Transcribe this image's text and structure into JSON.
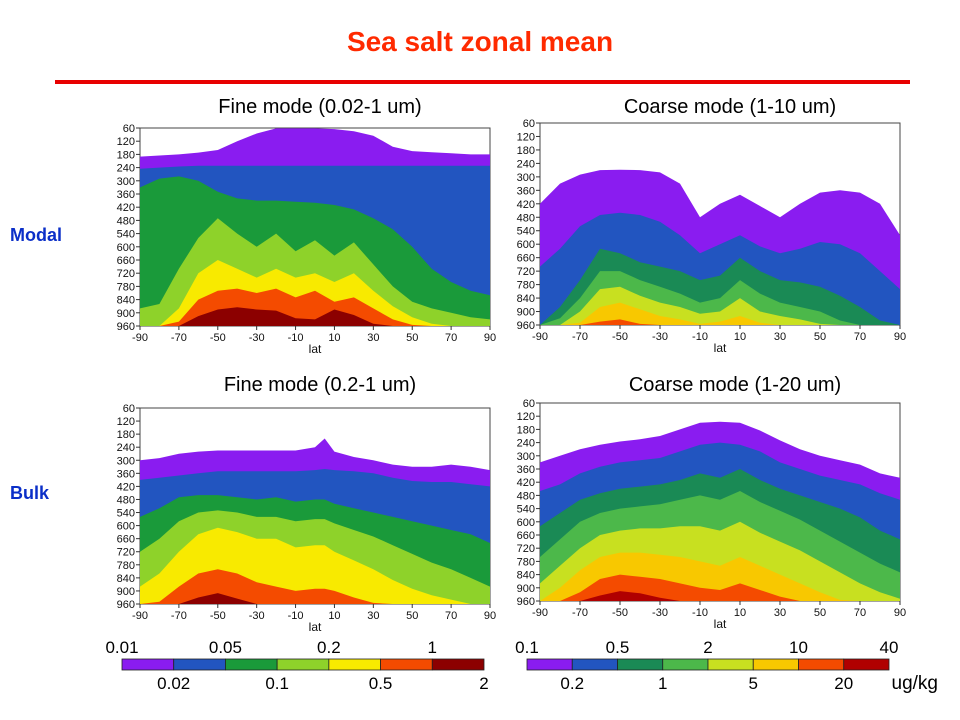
{
  "title": "Sea salt zonal mean",
  "row_labels": [
    "Modal",
    "Bulk"
  ],
  "units": "ug/kg",
  "colors": {
    "title": "#ff2a00",
    "row_label": "#0b2fc8",
    "fine_scale": [
      "#8a1cf0",
      "#2255c0",
      "#1a9a3a",
      "#8ed22a",
      "#f8ea00",
      "#f44b00",
      "#8c0000"
    ],
    "coarse_scale": [
      "#8a1cf0",
      "#2255c0",
      "#1a8a55",
      "#4cb84a",
      "#c8e020",
      "#f8c800",
      "#f44b00",
      "#b00000"
    ]
  },
  "chart_data": [
    {
      "type": "area",
      "title": "Fine mode (0.02-1 um)",
      "row": "Modal",
      "xlabel": "lat",
      "x_ticks": [
        "-90",
        "-70",
        "-50",
        "-30",
        "-10",
        "10",
        "30",
        "50",
        "70",
        "90"
      ],
      "y_ticks": [
        "60",
        "120",
        "180",
        "240",
        "300",
        "360",
        "420",
        "480",
        "540",
        "600",
        "660",
        "720",
        "780",
        "840",
        "900",
        "960"
      ],
      "xlim": [
        -90,
        90
      ],
      "ylim": [
        960,
        60
      ],
      "scale": "fine",
      "x": [
        -90,
        -80,
        -70,
        -60,
        -50,
        -40,
        -30,
        -20,
        -10,
        0,
        10,
        20,
        30,
        40,
        50,
        60,
        70,
        80,
        90
      ],
      "series": [
        {
          "values": [
            190,
            185,
            180,
            172,
            160,
            120,
            85,
            62,
            62,
            62,
            65,
            75,
            95,
            145,
            165,
            170,
            175,
            180,
            180
          ]
        },
        {
          "values": [
            245,
            240,
            235,
            232,
            232,
            232,
            232,
            232,
            232,
            232,
            232,
            232,
            232,
            232,
            232,
            232,
            232,
            232,
            232
          ]
        },
        {
          "values": [
            330,
            290,
            280,
            300,
            350,
            380,
            390,
            390,
            395,
            400,
            410,
            430,
            470,
            520,
            600,
            700,
            760,
            800,
            820
          ]
        },
        {
          "values": [
            880,
            860,
            700,
            560,
            470,
            540,
            600,
            540,
            620,
            570,
            640,
            580,
            680,
            780,
            850,
            880,
            900,
            920,
            930
          ]
        },
        {
          "values": [
            965,
            965,
            880,
            720,
            660,
            700,
            740,
            700,
            740,
            720,
            760,
            720,
            800,
            870,
            920,
            950,
            960,
            965,
            965
          ]
        },
        {
          "values": [
            965,
            965,
            940,
            840,
            800,
            790,
            810,
            790,
            830,
            800,
            850,
            830,
            880,
            930,
            955,
            965,
            965,
            965,
            965
          ]
        },
        {
          "values": [
            965,
            965,
            965,
            915,
            885,
            875,
            885,
            890,
            925,
            930,
            885,
            910,
            950,
            965,
            965,
            965,
            965,
            965,
            965
          ]
        }
      ]
    },
    {
      "type": "area",
      "title": "Coarse mode (1-10 um)",
      "row": "Modal",
      "xlabel": "lat",
      "x_ticks": [
        "-90",
        "-70",
        "-50",
        "-30",
        "-10",
        "10",
        "30",
        "50",
        "70",
        "90"
      ],
      "y_ticks": [
        "60",
        "120",
        "180",
        "240",
        "300",
        "360",
        "420",
        "480",
        "540",
        "600",
        "660",
        "720",
        "780",
        "840",
        "900",
        "960"
      ],
      "xlim": [
        -90,
        90
      ],
      "ylim": [
        960,
        60
      ],
      "scale": "coarse",
      "x": [
        -90,
        -80,
        -70,
        -60,
        -50,
        -40,
        -30,
        -20,
        -10,
        0,
        10,
        20,
        30,
        40,
        50,
        60,
        70,
        80,
        90
      ],
      "series": [
        {
          "values": [
            420,
            330,
            290,
            270,
            268,
            270,
            280,
            330,
            480,
            420,
            380,
            430,
            480,
            420,
            370,
            360,
            370,
            420,
            560
          ]
        },
        {
          "values": [
            700,
            620,
            520,
            470,
            460,
            470,
            500,
            560,
            640,
            600,
            560,
            610,
            640,
            620,
            590,
            600,
            640,
            720,
            800
          ]
        },
        {
          "values": [
            960,
            880,
            760,
            620,
            640,
            680,
            700,
            720,
            760,
            740,
            660,
            720,
            760,
            770,
            790,
            830,
            880,
            940,
            965
          ]
        },
        {
          "values": [
            965,
            930,
            840,
            720,
            720,
            760,
            790,
            820,
            860,
            840,
            760,
            820,
            860,
            880,
            900,
            940,
            965,
            965,
            965
          ]
        },
        {
          "values": [
            965,
            965,
            900,
            800,
            790,
            830,
            860,
            880,
            910,
            900,
            840,
            900,
            920,
            935,
            955,
            965,
            965,
            965,
            965
          ]
        },
        {
          "values": [
            965,
            965,
            950,
            880,
            860,
            890,
            920,
            935,
            955,
            945,
            920,
            950,
            965,
            965,
            965,
            965,
            965,
            965,
            965
          ]
        },
        {
          "values": [
            965,
            965,
            965,
            945,
            935,
            955,
            965,
            965,
            965,
            965,
            965,
            965,
            965,
            965,
            965,
            965,
            965,
            965,
            965
          ]
        }
      ]
    },
    {
      "type": "area",
      "title": "Fine mode (0.2-1 um)",
      "row": "Bulk",
      "xlabel": "lat",
      "x_ticks": [
        "-90",
        "-70",
        "-50",
        "-30",
        "-10",
        "10",
        "30",
        "50",
        "70",
        "90"
      ],
      "y_ticks": [
        "60",
        "120",
        "180",
        "240",
        "300",
        "360",
        "420",
        "480",
        "540",
        "600",
        "660",
        "720",
        "780",
        "840",
        "900",
        "960"
      ],
      "xlim": [
        -90,
        90
      ],
      "ylim": [
        960,
        60
      ],
      "scale": "fine",
      "x": [
        -90,
        -80,
        -70,
        -60,
        -50,
        -40,
        -30,
        -20,
        -10,
        0,
        5,
        10,
        20,
        30,
        40,
        50,
        60,
        70,
        80,
        90
      ],
      "series": [
        {
          "values": [
            300,
            290,
            270,
            260,
            255,
            255,
            255,
            255,
            255,
            240,
            200,
            260,
            285,
            300,
            320,
            330,
            330,
            320,
            330,
            345
          ]
        },
        {
          "values": [
            390,
            380,
            370,
            360,
            350,
            350,
            350,
            350,
            350,
            345,
            340,
            345,
            350,
            360,
            380,
            395,
            400,
            400,
            410,
            420
          ]
        },
        {
          "values": [
            560,
            520,
            470,
            460,
            460,
            470,
            480,
            470,
            490,
            480,
            480,
            500,
            520,
            540,
            560,
            580,
            600,
            620,
            640,
            680
          ]
        },
        {
          "values": [
            720,
            660,
            580,
            540,
            530,
            540,
            560,
            560,
            580,
            570,
            570,
            590,
            620,
            650,
            690,
            730,
            770,
            800,
            840,
            880
          ]
        },
        {
          "values": [
            880,
            820,
            720,
            640,
            610,
            630,
            660,
            660,
            700,
            690,
            690,
            720,
            760,
            800,
            850,
            890,
            920,
            940,
            960,
            965
          ]
        },
        {
          "values": [
            965,
            950,
            880,
            820,
            800,
            820,
            860,
            880,
            900,
            890,
            890,
            900,
            930,
            955,
            965,
            965,
            965,
            965,
            965,
            965
          ]
        },
        {
          "values": [
            965,
            965,
            965,
            930,
            910,
            935,
            960,
            965,
            965,
            965,
            965,
            965,
            965,
            965,
            965,
            965,
            965,
            965,
            965,
            965
          ]
        }
      ]
    },
    {
      "type": "area",
      "title": "Coarse mode (1-20 um)",
      "row": "Bulk",
      "xlabel": "lat",
      "x_ticks": [
        "-90",
        "-70",
        "-50",
        "-30",
        "-10",
        "10",
        "30",
        "50",
        "70",
        "90"
      ],
      "y_ticks": [
        "60",
        "120",
        "180",
        "240",
        "300",
        "360",
        "420",
        "480",
        "540",
        "600",
        "660",
        "720",
        "780",
        "840",
        "900",
        "960"
      ],
      "xlim": [
        -90,
        90
      ],
      "ylim": [
        960,
        60
      ],
      "scale": "coarse",
      "x": [
        -90,
        -80,
        -70,
        -60,
        -50,
        -40,
        -30,
        -20,
        -10,
        0,
        10,
        20,
        30,
        40,
        50,
        60,
        70,
        80,
        90
      ],
      "series": [
        {
          "values": [
            330,
            300,
            270,
            250,
            235,
            225,
            210,
            180,
            150,
            145,
            150,
            185,
            230,
            270,
            300,
            320,
            340,
            380,
            400
          ]
        },
        {
          "values": [
            460,
            430,
            380,
            350,
            330,
            320,
            310,
            280,
            250,
            240,
            250,
            280,
            330,
            360,
            390,
            410,
            430,
            470,
            500
          ]
        },
        {
          "values": [
            620,
            560,
            500,
            470,
            450,
            440,
            430,
            410,
            380,
            400,
            360,
            410,
            450,
            480,
            510,
            540,
            580,
            640,
            680
          ]
        },
        {
          "values": [
            760,
            680,
            600,
            560,
            540,
            530,
            520,
            500,
            480,
            500,
            460,
            510,
            550,
            590,
            640,
            690,
            740,
            790,
            830
          ]
        },
        {
          "values": [
            880,
            800,
            720,
            660,
            640,
            630,
            630,
            620,
            620,
            640,
            600,
            650,
            690,
            730,
            780,
            830,
            880,
            920,
            950
          ]
        },
        {
          "values": [
            960,
            900,
            820,
            760,
            740,
            740,
            750,
            760,
            780,
            800,
            760,
            800,
            840,
            880,
            920,
            955,
            965,
            965,
            965
          ]
        },
        {
          "values": [
            965,
            965,
            920,
            860,
            840,
            850,
            860,
            880,
            900,
            910,
            880,
            910,
            940,
            960,
            965,
            965,
            965,
            965,
            965
          ]
        },
        {
          "values": [
            965,
            965,
            965,
            935,
            915,
            925,
            945,
            960,
            965,
            965,
            965,
            965,
            965,
            965,
            965,
            965,
            965,
            965,
            965
          ]
        }
      ]
    }
  ],
  "colorbars": [
    {
      "top_labels": [
        "0.01",
        "0.05",
        "0.2",
        "1"
      ],
      "bottom_labels": [
        "0.02",
        "0.1",
        "0.5",
        "2"
      ]
    },
    {
      "top_labels": [
        "0.1",
        "0.5",
        "2",
        "10",
        "40"
      ],
      "bottom_labels": [
        "0.2",
        "1",
        "5",
        "20"
      ]
    }
  ]
}
